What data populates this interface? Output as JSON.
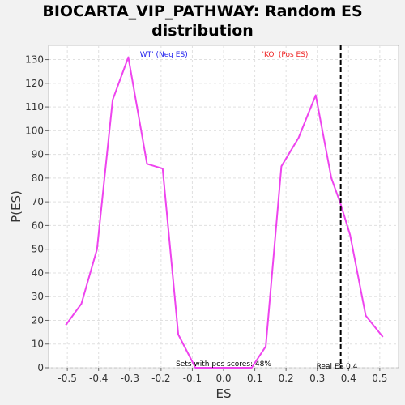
{
  "chart_data": {
    "type": "line",
    "title_line1": "BIOCARTA_VIP_PATHWAY: Random ES",
    "title_line2": "distribution",
    "xlabel": "ES",
    "ylabel": "P(ES)",
    "xlim": [
      -0.56,
      0.56
    ],
    "ylim": [
      0,
      136
    ],
    "x_ticks": [
      -0.5,
      -0.4,
      -0.3,
      -0.2,
      -0.1,
      0.0,
      0.1,
      0.2,
      0.3,
      0.4,
      0.5
    ],
    "x_tick_labels": [
      "-0.5",
      "-0.4",
      "-0.3",
      "-0.2",
      "-0.1",
      "0.0",
      "0.1",
      "0.2",
      "0.3",
      "0.4",
      "0.5"
    ],
    "y_ticks": [
      0,
      10,
      20,
      30,
      40,
      50,
      60,
      70,
      80,
      90,
      100,
      110,
      120,
      130
    ],
    "grid": true,
    "series": [
      {
        "color": "#ee44ee",
        "x": [
          -0.505,
          -0.455,
          -0.405,
          -0.355,
          -0.305,
          -0.245,
          -0.195,
          -0.145,
          -0.09,
          0.09,
          0.135,
          0.185,
          0.24,
          0.295,
          0.345,
          0.375,
          0.405,
          0.455,
          0.51
        ],
        "y": [
          18,
          27,
          50,
          113,
          131,
          86,
          84,
          14,
          0,
          0,
          9,
          85,
          97,
          115,
          80,
          69,
          56,
          22,
          13
        ]
      }
    ],
    "real_es": {
      "x": 0.375,
      "label": "Real ES 0.4",
      "color": "#000000"
    },
    "annotations": {
      "neg_label": "'WT' (Neg ES)",
      "neg_color": "#2222ee",
      "pos_label": "'KO' (Pos ES)",
      "pos_color": "#ee2222",
      "pos_scores": "Sets with pos scores: 48%"
    }
  }
}
